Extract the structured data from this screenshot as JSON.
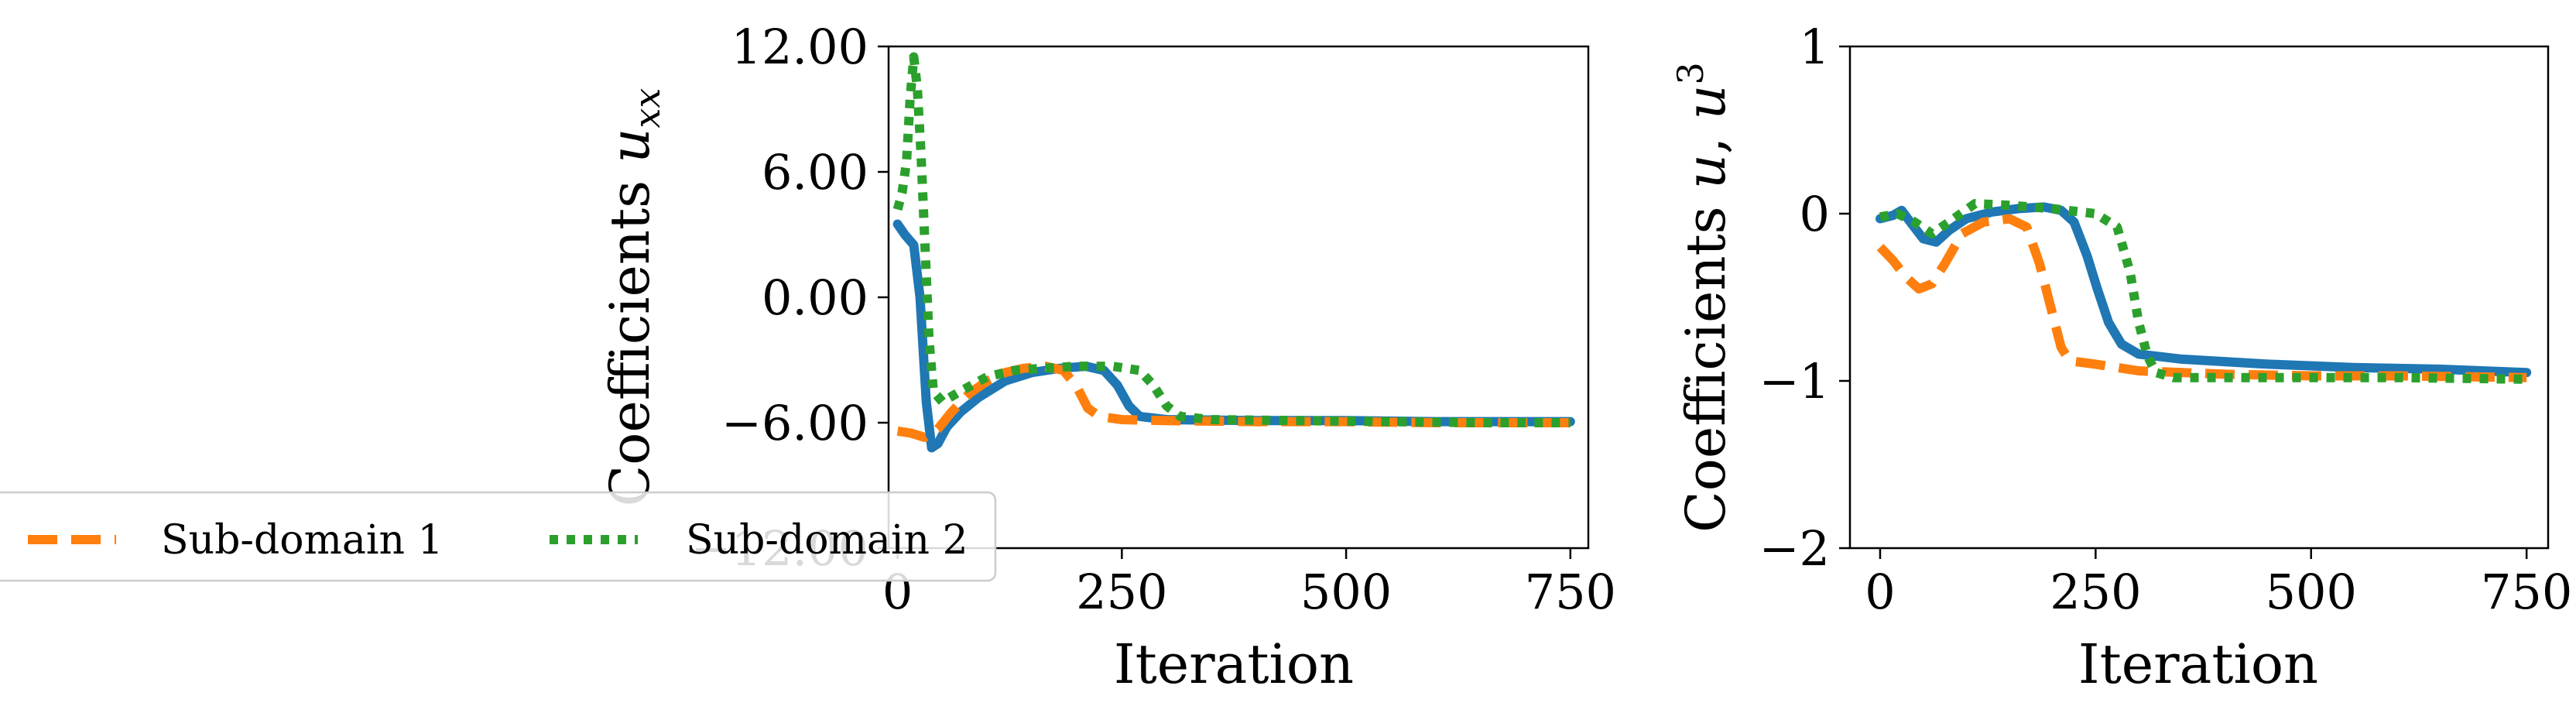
{
  "chart_data": [
    {
      "type": "line",
      "xlabel": "Iteration",
      "ylabel": "Coefficients u_xx",
      "xlim": [
        -10,
        770
      ],
      "ylim": [
        -12,
        12
      ],
      "xticks": [
        0,
        250,
        500,
        750
      ],
      "xtick_labels": [
        "0",
        "250",
        "500",
        "750"
      ],
      "yticks": [
        12,
        6,
        0,
        -6,
        -12
      ],
      "ytick_labels": [
        "12.00",
        "6.00",
        "0.00",
        "−6.00",
        "−12.00"
      ],
      "grid": false,
      "series": [
        {
          "color": "#1f77b4",
          "dash": "solid",
          "points": [
            [
              0,
              3.5
            ],
            [
              8,
              3.0
            ],
            [
              18,
              2.5
            ],
            [
              25,
              0
            ],
            [
              32,
              -5
            ],
            [
              38,
              -7.2
            ],
            [
              45,
              -7.0
            ],
            [
              55,
              -6.2
            ],
            [
              70,
              -5.5
            ],
            [
              90,
              -4.8
            ],
            [
              120,
              -4.0
            ],
            [
              150,
              -3.6
            ],
            [
              180,
              -3.4
            ],
            [
              210,
              -3.3
            ],
            [
              230,
              -3.5
            ],
            [
              245,
              -4.2
            ],
            [
              258,
              -5.2
            ],
            [
              270,
              -5.7
            ],
            [
              300,
              -5.85
            ],
            [
              400,
              -5.9
            ],
            [
              500,
              -5.9
            ],
            [
              600,
              -5.95
            ],
            [
              700,
              -5.95
            ],
            [
              750,
              -5.95
            ]
          ]
        },
        {
          "name": "Sub-domain 1",
          "color": "#ff7f0e",
          "dash": "dashed",
          "points": [
            [
              0,
              -6.4
            ],
            [
              15,
              -6.5
            ],
            [
              30,
              -6.7
            ],
            [
              45,
              -6.3
            ],
            [
              60,
              -5.5
            ],
            [
              80,
              -4.6
            ],
            [
              100,
              -4.0
            ],
            [
              120,
              -3.6
            ],
            [
              140,
              -3.4
            ],
            [
              165,
              -3.3
            ],
            [
              185,
              -3.5
            ],
            [
              200,
              -4.3
            ],
            [
              212,
              -5.3
            ],
            [
              225,
              -5.7
            ],
            [
              250,
              -5.85
            ],
            [
              300,
              -5.9
            ],
            [
              400,
              -5.95
            ],
            [
              500,
              -5.95
            ],
            [
              600,
              -6.0
            ],
            [
              750,
              -6.0
            ]
          ]
        },
        {
          "name": "Sub-domain 2",
          "color": "#2ca02c",
          "dash": "dotted",
          "points": [
            [
              0,
              4.2
            ],
            [
              5,
              5.0
            ],
            [
              10,
              6.5
            ],
            [
              14,
              9.5
            ],
            [
              18,
              11.5
            ],
            [
              22,
              10.0
            ],
            [
              26,
              7.0
            ],
            [
              30,
              3.0
            ],
            [
              35,
              -2.0
            ],
            [
              40,
              -4.5
            ],
            [
              50,
              -5.0
            ],
            [
              70,
              -4.5
            ],
            [
              100,
              -3.8
            ],
            [
              130,
              -3.5
            ],
            [
              160,
              -3.4
            ],
            [
              200,
              -3.3
            ],
            [
              240,
              -3.3
            ],
            [
              270,
              -3.5
            ],
            [
              285,
              -4.2
            ],
            [
              300,
              -5.2
            ],
            [
              315,
              -5.7
            ],
            [
              350,
              -5.85
            ],
            [
              450,
              -5.9
            ],
            [
              550,
              -5.95
            ],
            [
              650,
              -6.0
            ],
            [
              750,
              -6.0
            ]
          ]
        }
      ]
    },
    {
      "type": "line",
      "xlabel": "Iteration",
      "ylabel": "Coefficients u, u^3",
      "xlim": [
        -35,
        775
      ],
      "ylim": [
        -2,
        1
      ],
      "xticks": [
        0,
        250,
        500,
        750
      ],
      "xtick_labels": [
        "0",
        "250",
        "500",
        "750"
      ],
      "yticks": [
        1,
        0,
        -1,
        -2
      ],
      "ytick_labels": [
        "1",
        "0",
        "−1",
        "−2"
      ],
      "grid": false,
      "series": [
        {
          "color": "#1f77b4",
          "dash": "solid",
          "points": [
            [
              0,
              -0.03
            ],
            [
              15,
              -0.01
            ],
            [
              25,
              0.02
            ],
            [
              35,
              -0.05
            ],
            [
              50,
              -0.15
            ],
            [
              65,
              -0.17
            ],
            [
              80,
              -0.1
            ],
            [
              100,
              -0.03
            ],
            [
              130,
              0.01
            ],
            [
              160,
              0.03
            ],
            [
              190,
              0.04
            ],
            [
              210,
              0.02
            ],
            [
              225,
              -0.05
            ],
            [
              240,
              -0.25
            ],
            [
              252,
              -0.45
            ],
            [
              265,
              -0.65
            ],
            [
              280,
              -0.78
            ],
            [
              300,
              -0.84
            ],
            [
              350,
              -0.87
            ],
            [
              450,
              -0.9
            ],
            [
              550,
              -0.92
            ],
            [
              650,
              -0.93
            ],
            [
              750,
              -0.95
            ]
          ]
        },
        {
          "name": "Sub-domain 1",
          "color": "#ff7f0e",
          "dash": "dashed",
          "points": [
            [
              0,
              -0.2
            ],
            [
              15,
              -0.28
            ],
            [
              30,
              -0.38
            ],
            [
              45,
              -0.45
            ],
            [
              60,
              -0.42
            ],
            [
              75,
              -0.3
            ],
            [
              95,
              -0.12
            ],
            [
              120,
              -0.05
            ],
            [
              150,
              -0.03
            ],
            [
              170,
              -0.08
            ],
            [
              185,
              -0.3
            ],
            [
              200,
              -0.6
            ],
            [
              210,
              -0.8
            ],
            [
              220,
              -0.88
            ],
            [
              250,
              -0.9
            ],
            [
              300,
              -0.94
            ],
            [
              400,
              -0.96
            ],
            [
              500,
              -0.97
            ],
            [
              600,
              -0.97
            ],
            [
              750,
              -0.98
            ]
          ]
        },
        {
          "name": "Sub-domain 2",
          "color": "#2ca02c",
          "dash": "dotted",
          "points": [
            [
              0,
              -0.02
            ],
            [
              20,
              0.0
            ],
            [
              40,
              -0.05
            ],
            [
              60,
              -0.12
            ],
            [
              80,
              -0.05
            ],
            [
              110,
              0.06
            ],
            [
              150,
              0.05
            ],
            [
              200,
              0.03
            ],
            [
              250,
              0.0
            ],
            [
              275,
              -0.08
            ],
            [
              290,
              -0.35
            ],
            [
              300,
              -0.65
            ],
            [
              310,
              -0.85
            ],
            [
              320,
              -0.95
            ],
            [
              340,
              -0.98
            ],
            [
              400,
              -0.98
            ],
            [
              500,
              -0.98
            ],
            [
              600,
              -0.98
            ],
            [
              750,
              -0.99
            ]
          ]
        }
      ]
    }
  ],
  "legend": {
    "items": [
      {
        "label": "Sub-domain 1",
        "color": "#ff7f0e",
        "dash": "dashed"
      },
      {
        "label": "Sub-domain 2",
        "color": "#2ca02c",
        "dash": "dotted"
      }
    ]
  }
}
